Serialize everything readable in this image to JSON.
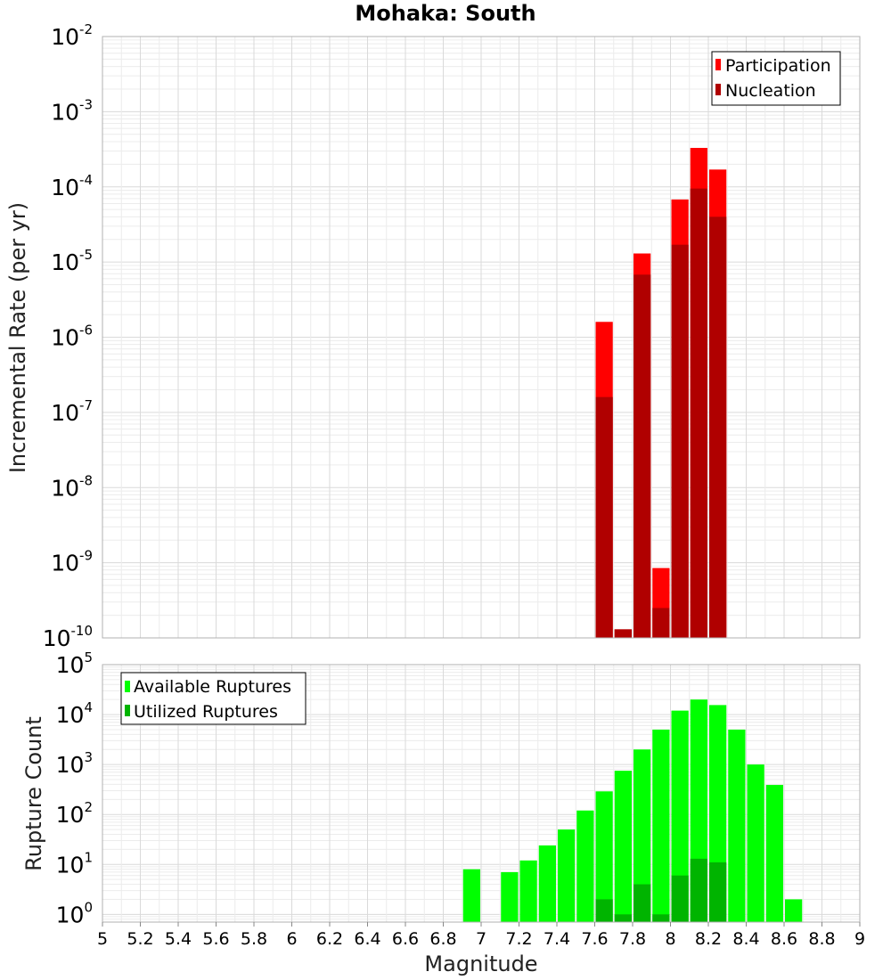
{
  "chart_data": [
    {
      "type": "bar",
      "title": "Mohaka: South",
      "ylabel": "Incremental Rate (per yr)",
      "xlabel": "",
      "y_scale": "log",
      "ylim": [
        1e-10,
        0.01
      ],
      "xlim": [
        5,
        9
      ],
      "grid": true,
      "legend_position": "top-right",
      "overlay": true,
      "x": [
        7.65,
        7.75,
        7.85,
        7.95,
        8.05,
        8.15,
        8.25
      ],
      "series": [
        {
          "name": "Participation",
          "color": "#ff0000",
          "values": [
            1.6e-06,
            1.3e-10,
            1.3e-05,
            8.5e-10,
            6.8e-05,
            0.00033,
            0.00017
          ]
        },
        {
          "name": "Nucleation",
          "color": "#b00000",
          "values": [
            1.6e-07,
            1.3e-10,
            6.8e-06,
            2.5e-10,
            1.7e-05,
            9.5e-05,
            4e-05
          ]
        }
      ]
    },
    {
      "type": "bar",
      "title": "",
      "ylabel": "Rupture Count",
      "xlabel": "Magnitude",
      "y_scale": "log",
      "ylim": [
        0.7,
        100000
      ],
      "xlim": [
        5,
        9
      ],
      "grid": true,
      "legend_position": "top-left",
      "overlay": true,
      "x": [
        6.95,
        7.15,
        7.25,
        7.35,
        7.45,
        7.55,
        7.65,
        7.75,
        7.85,
        7.95,
        8.05,
        8.15,
        8.25,
        8.35,
        8.45,
        8.55,
        8.65
      ],
      "series": [
        {
          "name": "Available Ruptures",
          "color": "#00ff00",
          "values": [
            8,
            7,
            12,
            24,
            50,
            120,
            290,
            750,
            2000,
            5000,
            12000,
            20000,
            15500,
            5000,
            1000,
            390,
            2
          ]
        },
        {
          "name": "Utilized Ruptures",
          "color": "#00b400",
          "values": [
            0,
            0,
            0,
            0,
            0,
            0,
            2,
            1,
            4,
            1,
            6,
            13,
            11,
            0,
            0,
            0,
            0
          ]
        }
      ]
    }
  ],
  "x_ticks": [
    "5",
    "5.2",
    "5.4",
    "5.6",
    "5.8",
    "6",
    "6.2",
    "6.4",
    "6.6",
    "6.8",
    "7",
    "7.2",
    "7.4",
    "7.6",
    "7.8",
    "8",
    "8.2",
    "8.4",
    "8.6",
    "8.8",
    "9"
  ],
  "top_y_ticks": [
    {
      "base": "10",
      "exp": "-2"
    },
    {
      "base": "10",
      "exp": "-3"
    },
    {
      "base": "10",
      "exp": "-4"
    },
    {
      "base": "10",
      "exp": "-5"
    },
    {
      "base": "10",
      "exp": "-6"
    },
    {
      "base": "10",
      "exp": "-7"
    },
    {
      "base": "10",
      "exp": "-8"
    },
    {
      "base": "10",
      "exp": "-9"
    },
    {
      "base": "10",
      "exp": "-10"
    }
  ],
  "bottom_y_ticks": [
    {
      "base": "10",
      "exp": "5"
    },
    {
      "base": "10",
      "exp": "4"
    },
    {
      "base": "10",
      "exp": "3"
    },
    {
      "base": "10",
      "exp": "2"
    },
    {
      "base": "10",
      "exp": "1"
    },
    {
      "base": "10",
      "exp": "0"
    }
  ]
}
